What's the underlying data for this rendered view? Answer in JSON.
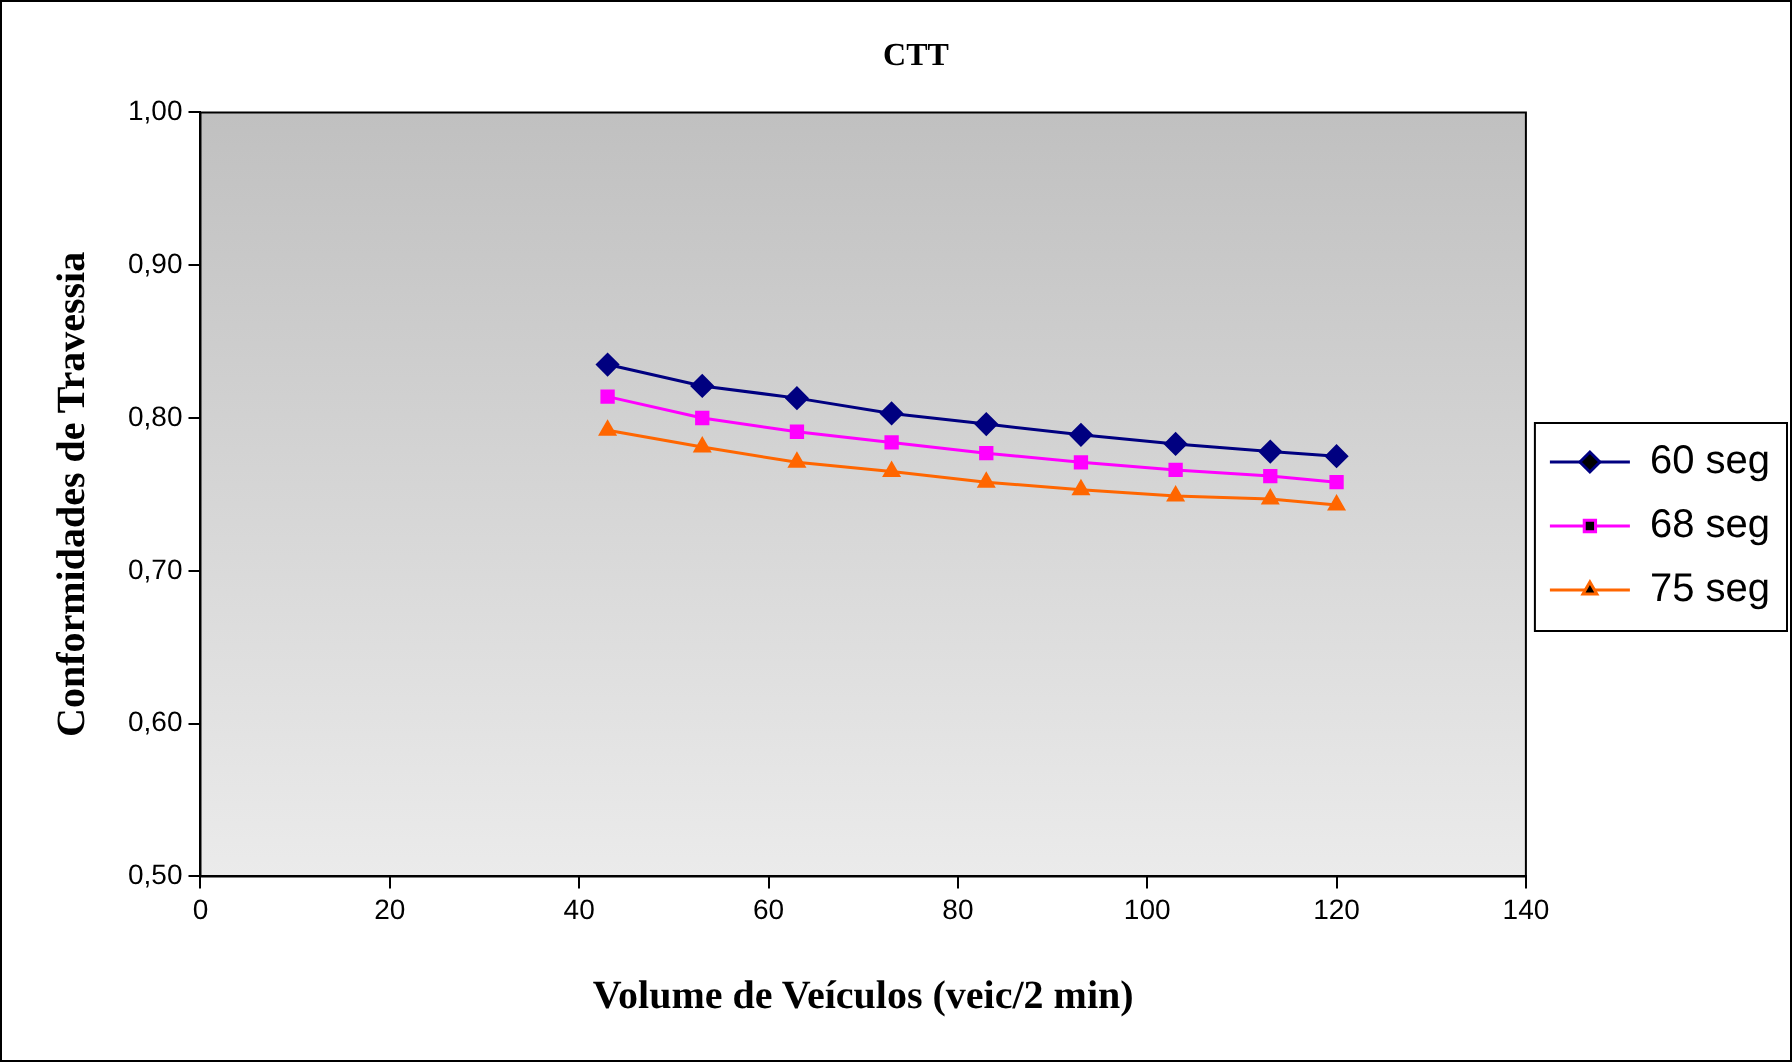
{
  "chart_data": {
    "type": "line",
    "title": "CTT",
    "xlabel": "Volume de Veículos (veic/2 min)",
    "ylabel": "Conformidades de Travessia",
    "x": [
      43,
      53,
      63,
      73,
      83,
      93,
      103,
      113,
      120
    ],
    "series": [
      {
        "name": "60 seg",
        "color": "#000080",
        "marker": "diamond",
        "values": [
          0.835,
          0.821,
          0.813,
          0.803,
          0.796,
          0.789,
          0.783,
          0.778,
          0.775
        ]
      },
      {
        "name": "68 seg",
        "color": "#ff00ff",
        "marker": "square",
        "values": [
          0.814,
          0.8,
          0.791,
          0.784,
          0.777,
          0.771,
          0.766,
          0.762,
          0.758
        ]
      },
      {
        "name": "75 seg",
        "color": "#ff6600",
        "marker": "triangle",
        "values": [
          0.792,
          0.781,
          0.771,
          0.765,
          0.758,
          0.753,
          0.749,
          0.747,
          0.743
        ]
      }
    ],
    "xlim": [
      0,
      140
    ],
    "xticks": [
      0,
      20,
      40,
      60,
      80,
      100,
      120,
      140
    ],
    "ylim": [
      0.5,
      1.0
    ],
    "yticks": [
      {
        "value": 0.5,
        "label": "0,50"
      },
      {
        "value": 0.6,
        "label": "0,60"
      },
      {
        "value": 0.7,
        "label": "0,70"
      },
      {
        "value": 0.8,
        "label": "0,80"
      },
      {
        "value": 0.9,
        "label": "0,90"
      },
      {
        "value": 1.0,
        "label": "1,00"
      }
    ],
    "grid": false,
    "legend": "right"
  }
}
